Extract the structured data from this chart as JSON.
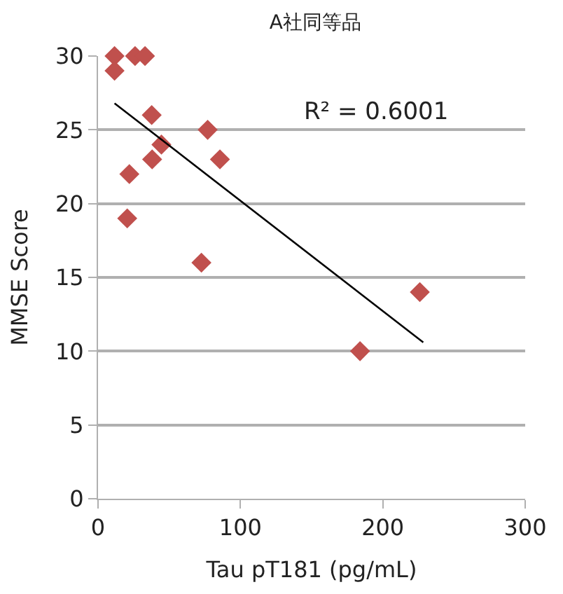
{
  "chart_data": {
    "type": "scatter",
    "title": "A社同等品",
    "xlabel": "Tau pT181 (pg/mL)",
    "ylabel": "MMSE Score",
    "xlim": [
      0,
      300
    ],
    "xticks": [
      0,
      100,
      200,
      300
    ],
    "ylim": [
      0,
      30
    ],
    "yticks": [
      0,
      5,
      10,
      15,
      20,
      25,
      30
    ],
    "grid": "y",
    "marker": "diamond",
    "series": [
      {
        "color": "#c0504d",
        "x": [
          11.6,
          26,
          33,
          11.6,
          37.7,
          77,
          44.5,
          38,
          85.6,
          22,
          20.5,
          72.6,
          184,
          226
        ],
        "values": [
          30,
          30,
          30,
          29,
          26,
          25,
          24,
          23,
          23,
          22,
          19,
          16,
          10,
          14
        ]
      },
      {
        "type": "line",
        "color": "#000000",
        "marker": "none",
        "x": [
          11.6,
          228.4
        ],
        "values": [
          26.8,
          10.6
        ]
      }
    ],
    "annotations": [
      "R² = 0.6001"
    ]
  }
}
